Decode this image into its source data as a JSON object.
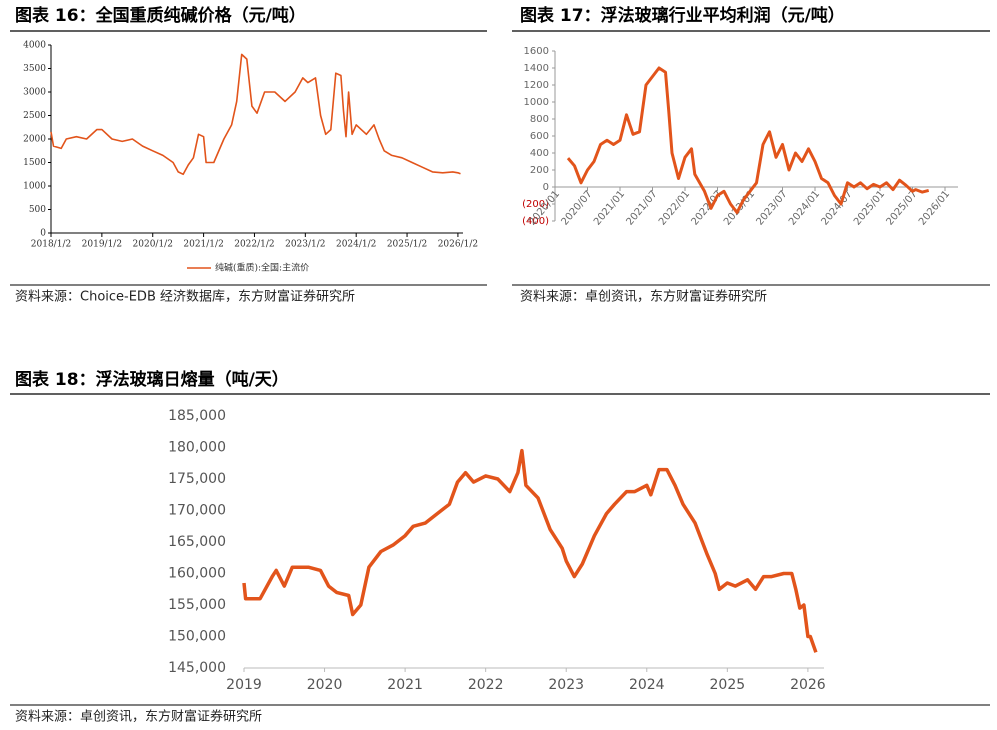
{
  "chart_data": [
    {
      "type": "line",
      "title": "图表 16：全国重质纯碱价格（元/吨）",
      "source": "资料来源：Choice-EDB 经济数据库，东方财富证券研究所",
      "x": [
        2018.0,
        2018.05,
        2018.2,
        2018.3,
        2018.5,
        2018.7,
        2018.9,
        2019.0,
        2019.2,
        2019.4,
        2019.6,
        2019.8,
        2020.0,
        2020.2,
        2020.4,
        2020.5,
        2020.6,
        2020.7,
        2020.8,
        2020.9,
        2021.0,
        2021.05,
        2021.2,
        2021.4,
        2021.55,
        2021.65,
        2021.75,
        2021.85,
        2021.95,
        2022.05,
        2022.2,
        2022.4,
        2022.6,
        2022.8,
        2022.95,
        2023.05,
        2023.2,
        2023.3,
        2023.4,
        2023.5,
        2023.6,
        2023.7,
        2023.75,
        2023.8,
        2023.85,
        2023.92,
        2024.0,
        2024.2,
        2024.35,
        2024.45,
        2024.55,
        2024.7,
        2024.9,
        2025.1,
        2025.3,
        2025.5,
        2025.7,
        2025.9,
        2026.0,
        2026.05
      ],
      "series": [
        {
          "name": "纯碱(重质):全国:主流价",
          "color": "#e2541b",
          "values": [
            2150,
            1850,
            1800,
            2000,
            2050,
            2000,
            2200,
            2200,
            2000,
            1950,
            2000,
            1850,
            1750,
            1650,
            1500,
            1300,
            1250,
            1450,
            1600,
            2100,
            2050,
            1500,
            1500,
            2000,
            2300,
            2800,
            3800,
            3700,
            2700,
            2550,
            3000,
            3000,
            2800,
            3000,
            3300,
            3200,
            3300,
            2500,
            2100,
            2200,
            3400,
            3350,
            2600,
            2050,
            3000,
            2100,
            2300,
            2100,
            2300,
            2000,
            1750,
            1650,
            1600,
            1500,
            1400,
            1300,
            1280,
            1300,
            1280,
            1260
          ]
        }
      ],
      "xlim": [
        2018,
        2026.1
      ],
      "ylim": [
        0,
        4000
      ],
      "yticks": [
        0,
        500,
        1000,
        1500,
        2000,
        2500,
        3000,
        3500,
        4000
      ],
      "xticks": [
        {
          "value": 2018,
          "label": "2018/1/2"
        },
        {
          "value": 2019,
          "label": "2019/1/2"
        },
        {
          "value": 2020,
          "label": "2020/1/2"
        },
        {
          "value": 2021,
          "label": "2021/1/2"
        },
        {
          "value": 2022,
          "label": "2022/1/2"
        },
        {
          "value": 2023,
          "label": "2023/1/2"
        },
        {
          "value": 2024,
          "label": "2024/1/2"
        },
        {
          "value": 2025,
          "label": "2025/1/2"
        },
        {
          "value": 2026,
          "label": "2026/1/2"
        }
      ]
    },
    {
      "type": "line",
      "title": "图表 17：浮法玻璃行业平均利润（元/吨）",
      "source": "资料来源：卓创资讯，东方财富证券研究所",
      "color": "#e2541b",
      "x": [
        2020.2,
        2020.3,
        2020.4,
        2020.5,
        2020.6,
        2020.7,
        2020.8,
        2020.9,
        2021.0,
        2021.1,
        2021.2,
        2021.3,
        2021.4,
        2021.5,
        2021.6,
        2021.7,
        2021.75,
        2021.8,
        2021.9,
        2022.0,
        2022.1,
        2022.15,
        2022.3,
        2022.4,
        2022.5,
        2022.6,
        2022.7,
        2022.8,
        2022.9,
        2023.0,
        2023.1,
        2023.2,
        2023.3,
        2023.4,
        2023.5,
        2023.6,
        2023.7,
        2023.8,
        2023.9,
        2024.0,
        2024.1,
        2024.2,
        2024.3,
        2024.4,
        2024.5,
        2024.6,
        2024.7,
        2024.8,
        2024.9,
        2025.0,
        2025.1,
        2025.2,
        2025.3,
        2025.4,
        2025.5,
        2025.55,
        2025.65,
        2025.75
      ],
      "values": [
        340,
        250,
        50,
        200,
        300,
        500,
        550,
        500,
        550,
        850,
        620,
        650,
        1200,
        1300,
        1400,
        1350,
        900,
        400,
        100,
        350,
        450,
        150,
        -50,
        -250,
        -100,
        -50,
        -200,
        -300,
        -150,
        -50,
        50,
        500,
        650,
        350,
        500,
        200,
        400,
        300,
        450,
        300,
        100,
        50,
        -100,
        -200,
        50,
        0,
        50,
        -20,
        30,
        0,
        50,
        -30,
        80,
        20,
        -50,
        -30,
        -60,
        -40
      ],
      "xlim": [
        2020,
        2026.2
      ],
      "ylim": [
        -400,
        1600
      ],
      "yticks": [
        {
          "value": -400,
          "label": "(400)"
        },
        {
          "value": -200,
          "label": "(200)"
        },
        0,
        200,
        400,
        600,
        800,
        1000,
        1200,
        1400,
        1600
      ],
      "xticks": [
        {
          "value": 2020,
          "label": "2020/01"
        },
        {
          "value": 2020.5,
          "label": "2020/07"
        },
        {
          "value": 2021,
          "label": "2021/01"
        },
        {
          "value": 2021.5,
          "label": "2021/07"
        },
        {
          "value": 2022,
          "label": "2022/01"
        },
        {
          "value": 2022.5,
          "label": "2022/07"
        },
        {
          "value": 2023,
          "label": "2023/01"
        },
        {
          "value": 2023.5,
          "label": "2023/07"
        },
        {
          "value": 2024,
          "label": "2024/01"
        },
        {
          "value": 2024.5,
          "label": "2024/07"
        },
        {
          "value": 2025,
          "label": "2025/01"
        },
        {
          "value": 2025.5,
          "label": "2025/07"
        },
        {
          "value": 2026,
          "label": "2026/01"
        }
      ]
    },
    {
      "type": "line",
      "title": "图表 18：浮法玻璃日熔量（吨/天）",
      "source": "资料来源：卓创资讯，东方财富证券研究所",
      "color": "#e2541b",
      "x": [
        2019.0,
        2019.02,
        2019.2,
        2019.35,
        2019.4,
        2019.5,
        2019.6,
        2019.8,
        2019.95,
        2020.05,
        2020.15,
        2020.3,
        2020.35,
        2020.45,
        2020.55,
        2020.7,
        2020.85,
        2021.0,
        2021.1,
        2021.25,
        2021.4,
        2021.55,
        2021.65,
        2021.75,
        2021.85,
        2022.0,
        2022.15,
        2022.3,
        2022.4,
        2022.45,
        2022.5,
        2022.65,
        2022.8,
        2022.95,
        2023.0,
        2023.1,
        2023.2,
        2023.35,
        2023.5,
        2023.6,
        2023.75,
        2023.85,
        2024.0,
        2024.05,
        2024.15,
        2024.25,
        2024.35,
        2024.45,
        2024.6,
        2024.75,
        2024.85,
        2024.9,
        2025.0,
        2025.1,
        2025.25,
        2025.35,
        2025.45,
        2025.55,
        2025.7,
        2025.8,
        2025.85,
        2025.9,
        2025.95,
        2026.0,
        2026.03,
        2026.1
      ],
      "values": [
        158500,
        156000,
        156000,
        159500,
        160500,
        158000,
        161000,
        161000,
        160500,
        158000,
        157000,
        156500,
        153500,
        155000,
        161000,
        163500,
        164500,
        166000,
        167500,
        168000,
        169500,
        171000,
        174500,
        176000,
        174500,
        175500,
        175000,
        173000,
        176000,
        179500,
        174000,
        172000,
        167000,
        164000,
        162000,
        159500,
        161500,
        166000,
        169500,
        171000,
        173000,
        173000,
        174000,
        172500,
        176500,
        176500,
        174000,
        171000,
        168000,
        163000,
        160000,
        157500,
        158500,
        158000,
        159000,
        157500,
        159500,
        159500,
        160000,
        160000,
        157500,
        154500,
        155000,
        150000,
        150000,
        147500
      ],
      "xlim": [
        2019,
        2026.2
      ],
      "ylim": [
        145000,
        185000
      ],
      "yticks": [
        {
          "value": 145000,
          "label": "145,000"
        },
        {
          "value": 150000,
          "label": "150,000"
        },
        {
          "value": 155000,
          "label": "155,000"
        },
        {
          "value": 160000,
          "label": "160,000"
        },
        {
          "value": 165000,
          "label": "165,000"
        },
        {
          "value": 170000,
          "label": "170,000"
        },
        {
          "value": 175000,
          "label": "175,000"
        },
        {
          "value": 180000,
          "label": "180,000"
        },
        {
          "value": 185000,
          "label": "185,000"
        }
      ],
      "xticks": [
        2019,
        2020,
        2021,
        2022,
        2023,
        2024,
        2025,
        2026
      ]
    }
  ]
}
